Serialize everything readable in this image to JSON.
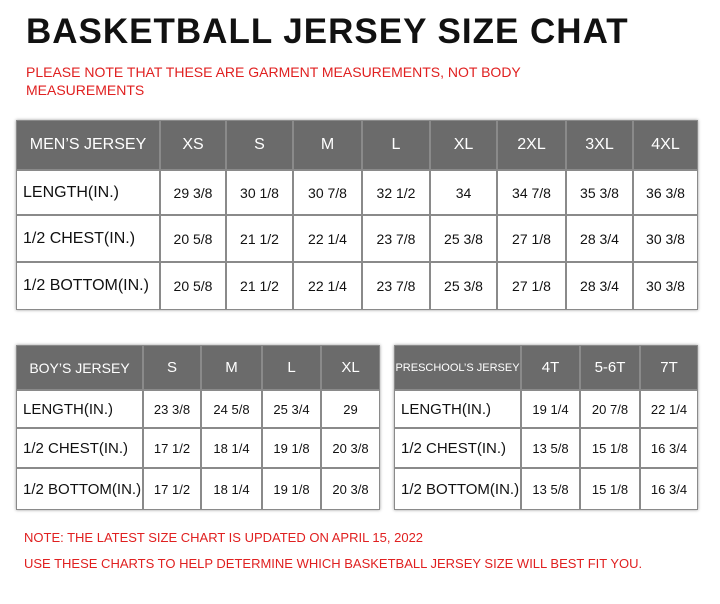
{
  "title": "BASKETBALL JERSEY SIZE CHAT",
  "note": "PLEASE NOTE THAT THESE ARE GARMENT MEASUREMENTS, NOT BODY MEASUREMENTS",
  "tables": [
    {
      "header": [
        "MEN’S JERSEY",
        "XS",
        "S",
        "M",
        "L",
        "XL",
        "2XL",
        "3XL",
        "4XL"
      ],
      "rows": [
        [
          "LENGTH(IN.)",
          "29 3/8",
          "30 1/8",
          "30 7/8",
          "32 1/2",
          "34",
          "34 7/8",
          "35 3/8",
          "36 3/8"
        ],
        [
          "1/2 CHEST(IN.)",
          "20 5/8",
          "21 1/2",
          "22 1/4",
          "23 7/8",
          "25 3/8",
          "27 1/8",
          "28 3/4",
          "30 3/8"
        ],
        [
          "1/2 BOTTOM(IN.)",
          "20 5/8",
          "21 1/2",
          "22 1/4",
          "23 7/8",
          "25 3/8",
          "27 1/8",
          "28 3/4",
          "30 3/8"
        ]
      ]
    },
    {
      "header": [
        "BOY’S JERSEY",
        "S",
        "M",
        "L",
        "XL"
      ],
      "rows": [
        [
          "LENGTH(IN.)",
          "23 3/8",
          "24 5/8",
          "25 3/4",
          "29"
        ],
        [
          "1/2 CHEST(IN.)",
          "17 1/2",
          "18 1/4",
          "19 1/8",
          "20 3/8"
        ],
        [
          "1/2 BOTTOM(IN.)",
          "17 1/2",
          "18 1/4",
          "19 1/8",
          "20 3/8"
        ]
      ]
    },
    {
      "header": [
        "PRESCHOOL’S JERSEY",
        "4T",
        "5-6T",
        "7T"
      ],
      "rows": [
        [
          "LENGTH(IN.)",
          "19 1/4",
          "20 7/8",
          "22 1/4"
        ],
        [
          "1/2 CHEST(IN.)",
          "13 5/8",
          "15 1/8",
          "16 3/4"
        ],
        [
          "1/2 BOTTOM(IN.)",
          "13 5/8",
          "15 1/8",
          "16 3/4"
        ]
      ]
    }
  ],
  "footer": [
    "NOTE: THE LATEST SIZE CHART IS UPDATED ON APRIL 15, 2022",
    "USE THESE CHARTS TO HELP DETERMINE WHICH  BASKETBALL JERSEY  SIZE WILL BEST FIT YOU."
  ]
}
